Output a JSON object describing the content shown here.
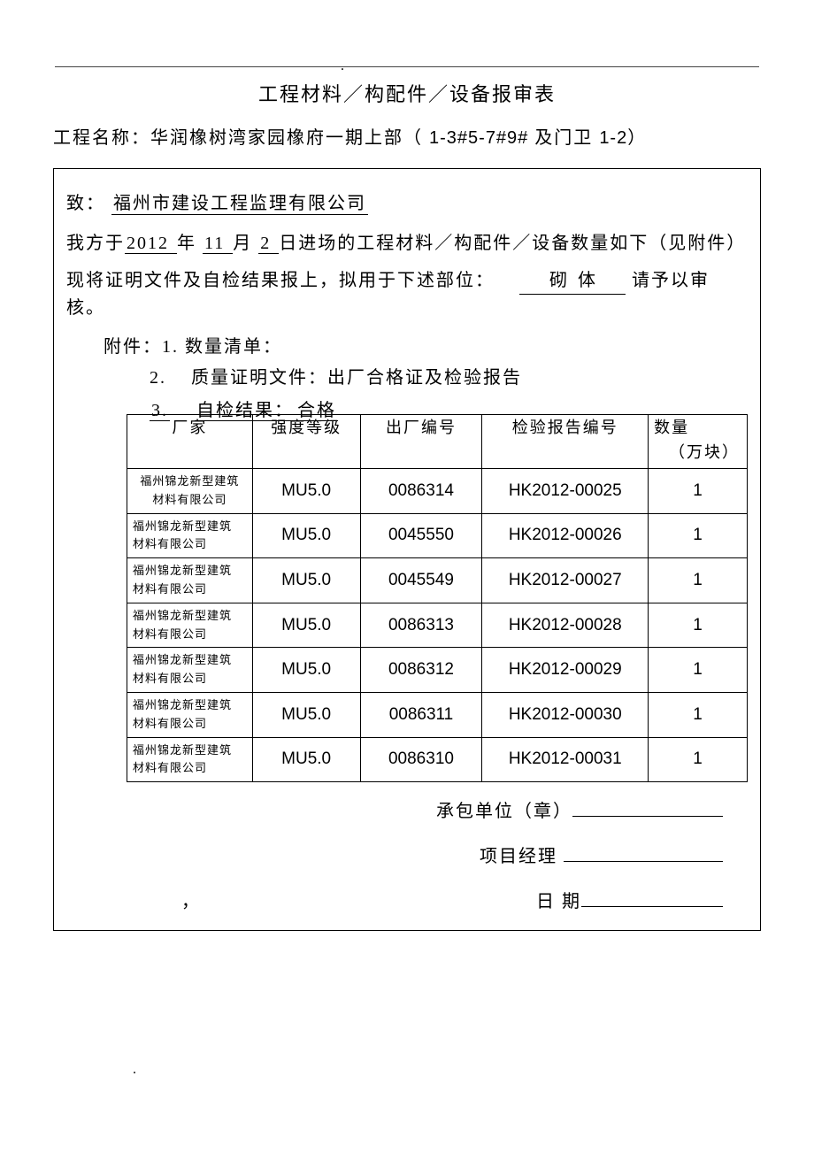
{
  "dot": ".",
  "title": "工程材料／构配件／设备报审表",
  "project_label": "工程名称：",
  "project_name_cn": "华润橡树湾家园橡府一期上部（",
  "project_name_en": "1-3#5-7#9#",
  "project_name_cn2": " 及门卫 ",
  "project_name_en2": "1-2",
  "project_name_close": "）",
  "to_label": "致：",
  "to_value": "  福州市建设工程监理有限公司     ",
  "line1_a": "我方于",
  "year": "2012 ",
  "year_label": " 年 ",
  "month": "11      ",
  "month_label": " 月 ",
  "day": " 2  ",
  "line1_b": " 日进场的工程材料／构配件／设备数量如下（见附件）",
  "line2_a": "现将证明文件及自检结果报上，拟用于下述部位：",
  "site_value": "砌体",
  "line2_b": "  请予以审核。",
  "attach_label": "附件：",
  "attach1": "1. 数量清单：",
  "attach2_num": "2.",
  "attach2": "质量证明文件：出厂合格证及检验报告",
  "attach3_num": "3.",
  "attach3_a": "自检结果：",
  "attach3_b": "合格",
  "headers": {
    "c1": "厂家",
    "c2": "强度等级",
    "c3": "出厂编号",
    "c4": "检验报告编号",
    "c5a": "数量",
    "c5b": "（万块）"
  },
  "maker": "福州锦龙新型建筑\n材料有限公司",
  "rows": [
    {
      "grade": "MU5.0",
      "fac": "0086314",
      "rep": "HK2012-00025",
      "qty": "1"
    },
    {
      "grade": "MU5.0",
      "fac": "0045550",
      "rep": "HK2012-00026",
      "qty": "1"
    },
    {
      "grade": "MU5.0",
      "fac": "0045549",
      "rep": "HK2012-00027",
      "qty": "1"
    },
    {
      "grade": "MU5.0",
      "fac": "0086313",
      "rep": "HK2012-00028",
      "qty": "1"
    },
    {
      "grade": "MU5.0",
      "fac": "0086312",
      "rep": "HK2012-00029",
      "qty": "1"
    },
    {
      "grade": "MU5.0",
      "fac": "0086311",
      "rep": "HK2012-00030",
      "qty": "1"
    },
    {
      "grade": "MU5.0",
      "fac": "0086310",
      "rep": "HK2012-00031",
      "qty": "1"
    }
  ],
  "sign1": "承包单位（章）",
  "sign2": "项目经理 ",
  "comma": "，",
  "sign3": "日      期"
}
